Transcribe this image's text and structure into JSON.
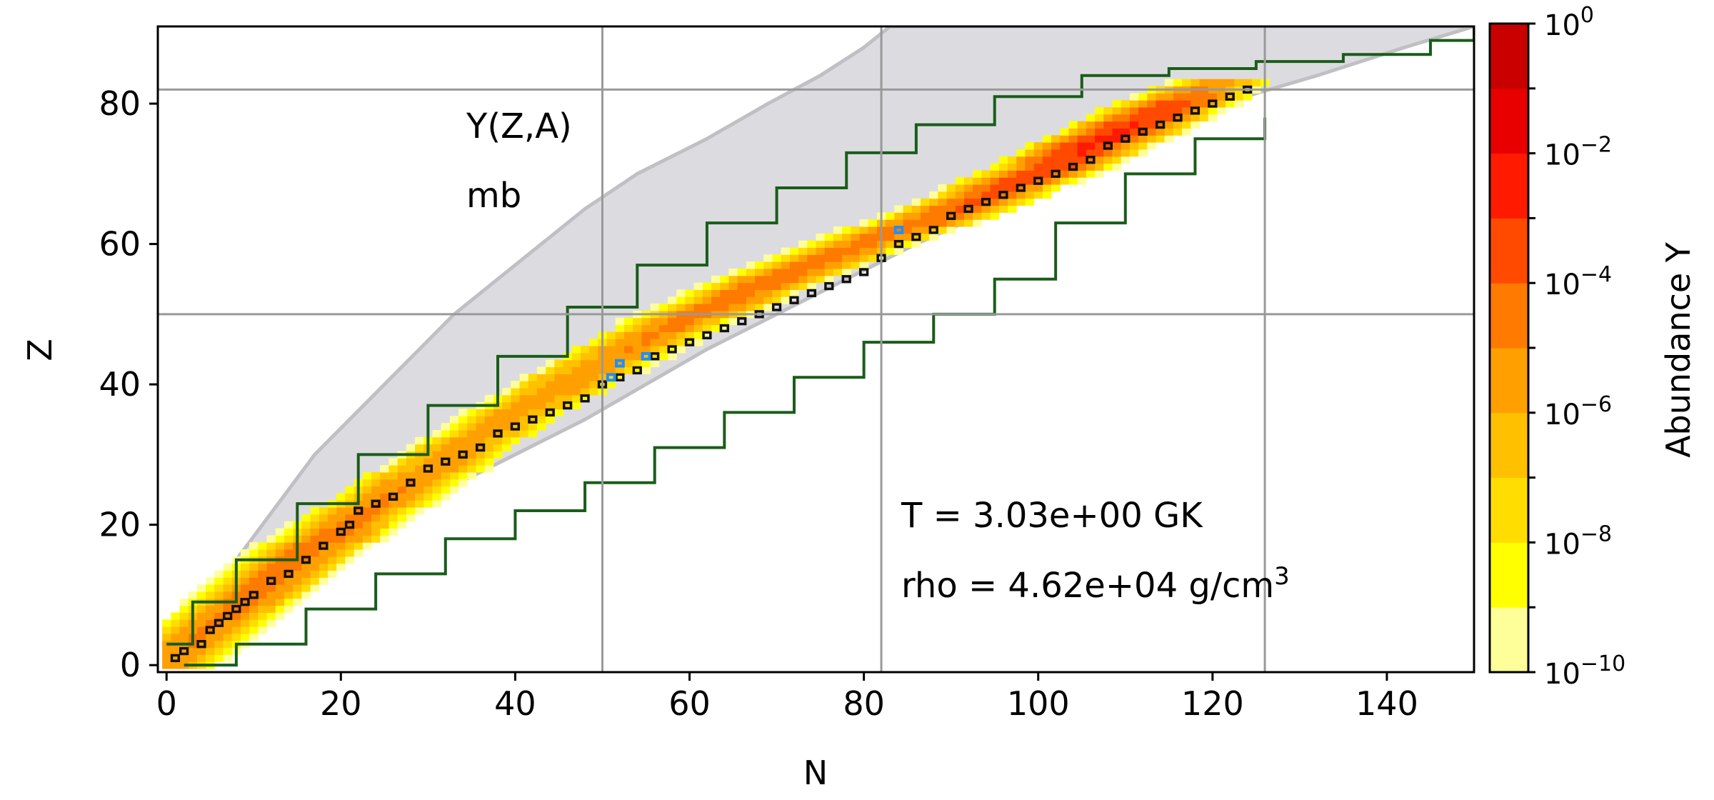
{
  "chart_data": {
    "type": "heatmap",
    "title": "",
    "xlabel": "N",
    "ylabel": "Z",
    "xlim": [
      -1,
      150
    ],
    "ylim": [
      -1,
      91
    ],
    "xticks": [
      0,
      20,
      40,
      60,
      80,
      100,
      120,
      140
    ],
    "yticks": [
      0,
      20,
      40,
      60,
      80
    ],
    "magic_numbers_N": [
      50,
      82,
      126
    ],
    "magic_numbers_Z": [
      50,
      82
    ],
    "annotations": {
      "quantity": "Y(Z,A)",
      "unit": "mb",
      "temperature": "T = 3.03e+00 GK",
      "density_prefix": "rho = 4.62e+04 g/cm",
      "density_sup": "3"
    },
    "colorbar": {
      "label": "Abundance Y",
      "log_min": -10,
      "log_max": 0,
      "levels": [
        -10,
        -9,
        -8,
        -7,
        -6,
        -5,
        -4,
        -3,
        -2,
        -1,
        0
      ],
      "colors": [
        "#ffff99",
        "#ffff00",
        "#ffdd00",
        "#ffc000",
        "#ffa000",
        "#ff7a00",
        "#ff4a00",
        "#ff1a00",
        "#e80000",
        "#c80000"
      ],
      "tick_labels": [
        {
          "exp": "-10",
          "value": -10
        },
        {
          "exp": "-8",
          "value": -8
        },
        {
          "exp": "-6",
          "value": -6
        },
        {
          "exp": "-4",
          "value": -4
        },
        {
          "exp": "-2",
          "value": -2
        },
        {
          "exp": "0",
          "value": 0
        }
      ]
    },
    "colors": {
      "network_fill": "#dcdce0",
      "network_edge": "#c0c0c4",
      "contour": "#1a5c1a",
      "stable_box": "#111111",
      "highlight": "#1e90ff",
      "grid": "#999999"
    },
    "network_bounds": {
      "Z": [
        0,
        5,
        10,
        15,
        20,
        25,
        30,
        35,
        40,
        45,
        50,
        55,
        60,
        65,
        70,
        75,
        80,
        84,
        88,
        91
      ],
      "N_min": [
        0,
        3,
        5,
        8,
        11,
        14,
        17,
        21,
        25,
        29,
        33,
        38,
        43,
        48,
        54,
        62,
        69,
        75,
        80,
        83
      ],
      "N_max": [
        4,
        8,
        13,
        18,
        23,
        32,
        40,
        48,
        55,
        62,
        70,
        78,
        86,
        95,
        103,
        113,
        121,
        132,
        142,
        150
      ]
    },
    "ridge": {
      "Z": [
        0,
        5,
        10,
        15,
        20,
        25,
        30,
        35,
        40,
        45,
        50,
        55,
        60,
        65,
        70,
        75,
        80,
        83
      ],
      "N": [
        0,
        5,
        10,
        15,
        21,
        27,
        33,
        39,
        46,
        53,
        61,
        70,
        80,
        91,
        100,
        108,
        116,
        121
      ],
      "logY_peak": [
        -5.2,
        -4.8,
        -4.5,
        -4.3,
        -4.6,
        -4.9,
        -5.2,
        -5.4,
        -5.2,
        -5.0,
        -4.5,
        -4.2,
        -4.6,
        -4.0,
        -3.4,
        -2.7,
        -3.4,
        -5.5
      ]
    },
    "green_contours": [
      {
        "name": "upper",
        "N": [
          0,
          3,
          8,
          15,
          22,
          30,
          38,
          46,
          54,
          62,
          70,
          78,
          86,
          95,
          105,
          115,
          125,
          135,
          145,
          150
        ],
        "Z": [
          3,
          9,
          15,
          23,
          30,
          37,
          44,
          51,
          57,
          63,
          68,
          73,
          77,
          81,
          84,
          85,
          86,
          87,
          89,
          91
        ]
      },
      {
        "name": "lower",
        "N": [
          2,
          8,
          16,
          24,
          32,
          40,
          48,
          56,
          64,
          72,
          80,
          88,
          95,
          102,
          110,
          118,
          126
        ],
        "Z": [
          0,
          3,
          8,
          13,
          18,
          22,
          26,
          31,
          36,
          41,
          46,
          50,
          55,
          63,
          70,
          75,
          78
        ]
      }
    ],
    "stable_isotopes": [
      [
        1,
        1
      ],
      [
        2,
        2
      ],
      [
        4,
        3
      ],
      [
        5,
        5
      ],
      [
        6,
        6
      ],
      [
        7,
        7
      ],
      [
        8,
        8
      ],
      [
        9,
        9
      ],
      [
        10,
        10
      ],
      [
        12,
        12
      ],
      [
        14,
        13
      ],
      [
        16,
        15
      ],
      [
        18,
        17
      ],
      [
        20,
        19
      ],
      [
        21,
        20
      ],
      [
        22,
        22
      ],
      [
        24,
        23
      ],
      [
        26,
        24
      ],
      [
        28,
        26
      ],
      [
        30,
        28
      ],
      [
        32,
        29
      ],
      [
        34,
        30
      ],
      [
        36,
        31
      ],
      [
        38,
        33
      ],
      [
        40,
        34
      ],
      [
        42,
        35
      ],
      [
        44,
        36
      ],
      [
        46,
        37
      ],
      [
        48,
        38
      ],
      [
        50,
        40
      ],
      [
        52,
        41
      ],
      [
        54,
        42
      ],
      [
        56,
        44
      ],
      [
        58,
        45
      ],
      [
        60,
        46
      ],
      [
        62,
        47
      ],
      [
        64,
        48
      ],
      [
        66,
        49
      ],
      [
        68,
        50
      ],
      [
        70,
        51
      ],
      [
        72,
        52
      ],
      [
        74,
        53
      ],
      [
        76,
        54
      ],
      [
        78,
        55
      ],
      [
        80,
        56
      ],
      [
        82,
        58
      ],
      [
        84,
        60
      ],
      [
        86,
        61
      ],
      [
        88,
        62
      ],
      [
        90,
        64
      ],
      [
        92,
        65
      ],
      [
        94,
        66
      ],
      [
        96,
        67
      ],
      [
        98,
        68
      ],
      [
        100,
        69
      ],
      [
        102,
        70
      ],
      [
        104,
        71
      ],
      [
        106,
        72
      ],
      [
        108,
        74
      ],
      [
        110,
        75
      ],
      [
        112,
        76
      ],
      [
        114,
        77
      ],
      [
        116,
        78
      ],
      [
        118,
        79
      ],
      [
        120,
        80
      ],
      [
        122,
        81
      ],
      [
        124,
        82
      ]
    ],
    "highlight_isotopes": [
      [
        51,
        41
      ],
      [
        52,
        43
      ],
      [
        55,
        44
      ],
      [
        84,
        62
      ]
    ]
  }
}
